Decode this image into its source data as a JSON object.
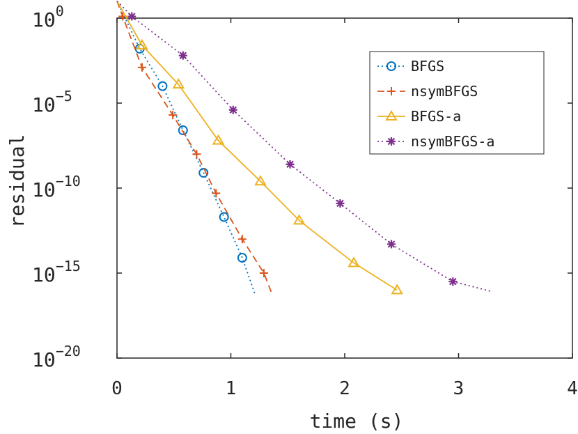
{
  "chart_data": {
    "type": "line",
    "xlabel": "time (s)",
    "ylabel": "residual",
    "xlim": [
      0,
      4
    ],
    "ylim": [
      1e-20,
      1
    ],
    "yscale": "log",
    "grid": false,
    "legend_position": "top-right",
    "x_ticks": [
      {
        "value": 0,
        "label": "0"
      },
      {
        "value": 1,
        "label": "1"
      },
      {
        "value": 2,
        "label": "2"
      },
      {
        "value": 3,
        "label": "3"
      },
      {
        "value": 4,
        "label": "4"
      }
    ],
    "y_ticks": [
      {
        "exp": 0,
        "base": "10",
        "sup": "0"
      },
      {
        "exp": -5,
        "base": "10",
        "sup": "−5"
      },
      {
        "exp": -10,
        "base": "10",
        "sup": "−10"
      },
      {
        "exp": -15,
        "base": "10",
        "sup": "−15"
      },
      {
        "exp": -20,
        "base": "10",
        "sup": "−20"
      }
    ],
    "series": [
      {
        "name": "BFGS",
        "color": "#0072BD",
        "line_style": "dotted",
        "marker": "circle",
        "line": [
          [
            0.0,
            1.0
          ],
          [
            0.2,
            -1.8
          ],
          [
            0.4,
            -4.0
          ],
          [
            0.58,
            -6.6
          ],
          [
            0.76,
            -9.1
          ],
          [
            0.94,
            -11.7
          ],
          [
            1.1,
            -14.1
          ],
          [
            1.21,
            -16.2
          ]
        ],
        "markers": [
          [
            0.2,
            -1.8
          ],
          [
            0.4,
            -4.0
          ],
          [
            0.58,
            -6.6
          ],
          [
            0.76,
            -9.1
          ],
          [
            0.94,
            -11.7
          ],
          [
            1.1,
            -14.1
          ]
        ]
      },
      {
        "name": "nsymBFGS",
        "color": "#D95319",
        "line_style": "dashed",
        "marker": "plus",
        "line": [
          [
            0.0,
            1.0
          ],
          [
            0.05,
            0.1
          ],
          [
            0.22,
            -2.9
          ],
          [
            0.49,
            -5.7
          ],
          [
            0.7,
            -8.0
          ],
          [
            0.87,
            -10.3
          ],
          [
            1.1,
            -13.0
          ],
          [
            1.29,
            -15.0
          ],
          [
            1.36,
            -16.2
          ]
        ],
        "markers": [
          [
            0.05,
            0.1
          ],
          [
            0.22,
            -2.9
          ],
          [
            0.49,
            -5.7
          ],
          [
            0.7,
            -8.0
          ],
          [
            0.87,
            -10.3
          ],
          [
            1.1,
            -13.0
          ],
          [
            1.29,
            -15.0
          ]
        ]
      },
      {
        "name": "BFGS-a",
        "color": "#EDB120",
        "line_style": "solid",
        "marker": "triangle",
        "line": [
          [
            0.0,
            1.0
          ],
          [
            0.22,
            -1.6
          ],
          [
            0.54,
            -3.9
          ],
          [
            0.89,
            -7.2
          ],
          [
            1.26,
            -9.6
          ],
          [
            1.6,
            -11.9
          ],
          [
            2.08,
            -14.4
          ],
          [
            2.46,
            -16.0
          ]
        ],
        "markers": [
          [
            0.22,
            -1.6
          ],
          [
            0.54,
            -3.9
          ],
          [
            0.89,
            -7.2
          ],
          [
            1.26,
            -9.6
          ],
          [
            1.6,
            -11.9
          ],
          [
            2.08,
            -14.4
          ],
          [
            2.46,
            -16.0
          ]
        ]
      },
      {
        "name": "nsymBFGS-a",
        "color": "#7E2F8E",
        "line_style": "dotted",
        "marker": "asterisk",
        "line": [
          [
            0.0,
            1.0
          ],
          [
            0.13,
            0.1
          ],
          [
            0.58,
            -2.2
          ],
          [
            1.02,
            -5.4
          ],
          [
            1.52,
            -8.6
          ],
          [
            1.96,
            -10.9
          ],
          [
            2.41,
            -13.3
          ],
          [
            2.95,
            -15.5
          ],
          [
            3.3,
            -16.1
          ]
        ],
        "markers": [
          [
            0.13,
            0.1
          ],
          [
            0.58,
            -2.2
          ],
          [
            1.02,
            -5.4
          ],
          [
            1.52,
            -8.6
          ],
          [
            1.96,
            -10.9
          ],
          [
            2.41,
            -13.3
          ],
          [
            2.95,
            -15.5
          ]
        ]
      }
    ]
  }
}
